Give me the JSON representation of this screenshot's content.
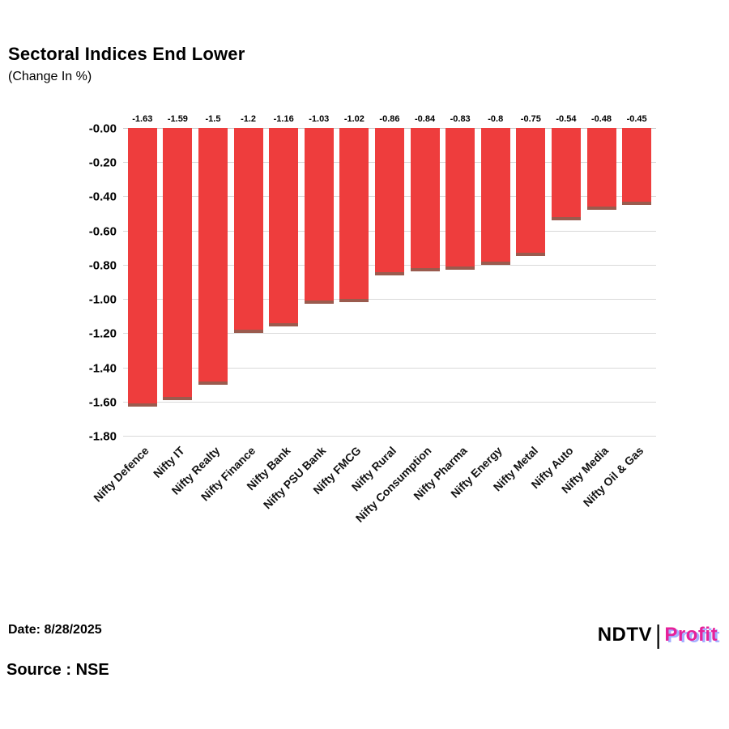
{
  "header": {
    "title": "Sectoral Indices End Lower",
    "subtitle": "(Change In %)"
  },
  "chart_data": {
    "type": "bar",
    "title": "Sectoral Indices End Lower",
    "subtitle": "(Change In %)",
    "categories": [
      "Nifty Defence",
      "Nifty IT",
      "Nifty Realty",
      "Nifty Finance",
      "Nifty Bank",
      "Nifty PSU Bank",
      "Nifty FMCG",
      "Nifty Rural",
      "Nifty Consumption",
      "Nifty Pharma",
      "Nifty Energy",
      "Nifty Metal",
      "Nifty Auto",
      "Nifty Media",
      "Nifty Oil & Gas"
    ],
    "values": [
      -1.63,
      -1.59,
      -1.5,
      -1.2,
      -1.16,
      -1.03,
      -1.02,
      -0.86,
      -0.84,
      -0.83,
      -0.8,
      -0.75,
      -0.54,
      -0.48,
      -0.45
    ],
    "value_labels": [
      "-1.63",
      "-1.59",
      "-1.5",
      "-1.2",
      "-1.16",
      "-1.03",
      "-1.02",
      "-0.86",
      "-0.84",
      "-0.83",
      "-0.8",
      "-0.75",
      "-0.54",
      "-0.48",
      "-0.45"
    ],
    "ylim": [
      -1.8,
      0
    ],
    "yticks": [
      "-0.00",
      "-0.20",
      "-0.40",
      "-0.60",
      "-0.80",
      "-1.00",
      "-1.20",
      "-1.40",
      "-1.60",
      "-1.80"
    ],
    "grid": true,
    "legend": "none",
    "bar_color": "#ee3d3d",
    "bar_tip_color": "#9a5b4e",
    "xlabel": "",
    "ylabel": ""
  },
  "footer": {
    "date_label": "Date: 8/28/2025",
    "source_label": "Source : NSE",
    "logo": {
      "ndtv": "NDTV",
      "separator": "|",
      "profit": "Profit"
    }
  }
}
